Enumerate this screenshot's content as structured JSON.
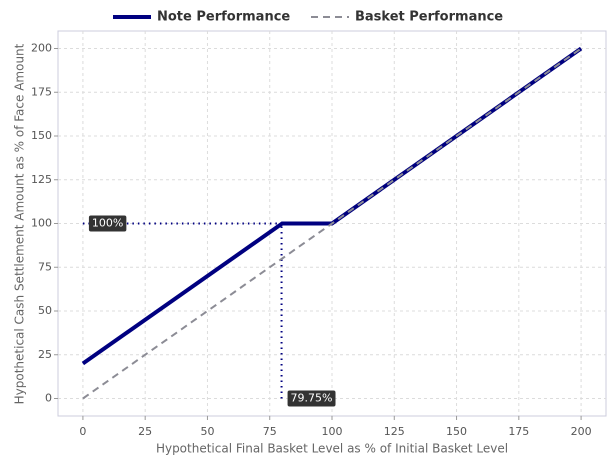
{
  "chart_data": {
    "type": "line",
    "x": [
      0,
      80,
      100,
      200
    ],
    "series": [
      {
        "name": "Note Performance",
        "color": "#000080",
        "values": [
          20,
          100,
          100,
          200
        ],
        "style": "solid"
      },
      {
        "name": "Basket Performance",
        "color": "#8c8c95",
        "values": [
          0,
          80,
          100,
          200
        ],
        "style": "dashed"
      }
    ],
    "x_label": "Hypothetical Final Basket Level as % of Initial Basket Level",
    "y_label": "Hypothetical Cash Settlement Amount as % of Face Amount",
    "xlim": [
      -10,
      210
    ],
    "ylim": [
      -10,
      210
    ],
    "xticks": [
      0,
      25,
      50,
      75,
      100,
      125,
      150,
      175,
      200
    ],
    "yticks": [
      0,
      25,
      50,
      75,
      100,
      125,
      150,
      175,
      200
    ],
    "grid": true,
    "legend": "top",
    "annotations": [
      {
        "label": "100%",
        "value": 100,
        "axis": "y"
      },
      {
        "label": "79.75%",
        "value": 79.75,
        "axis": "x"
      }
    ]
  }
}
